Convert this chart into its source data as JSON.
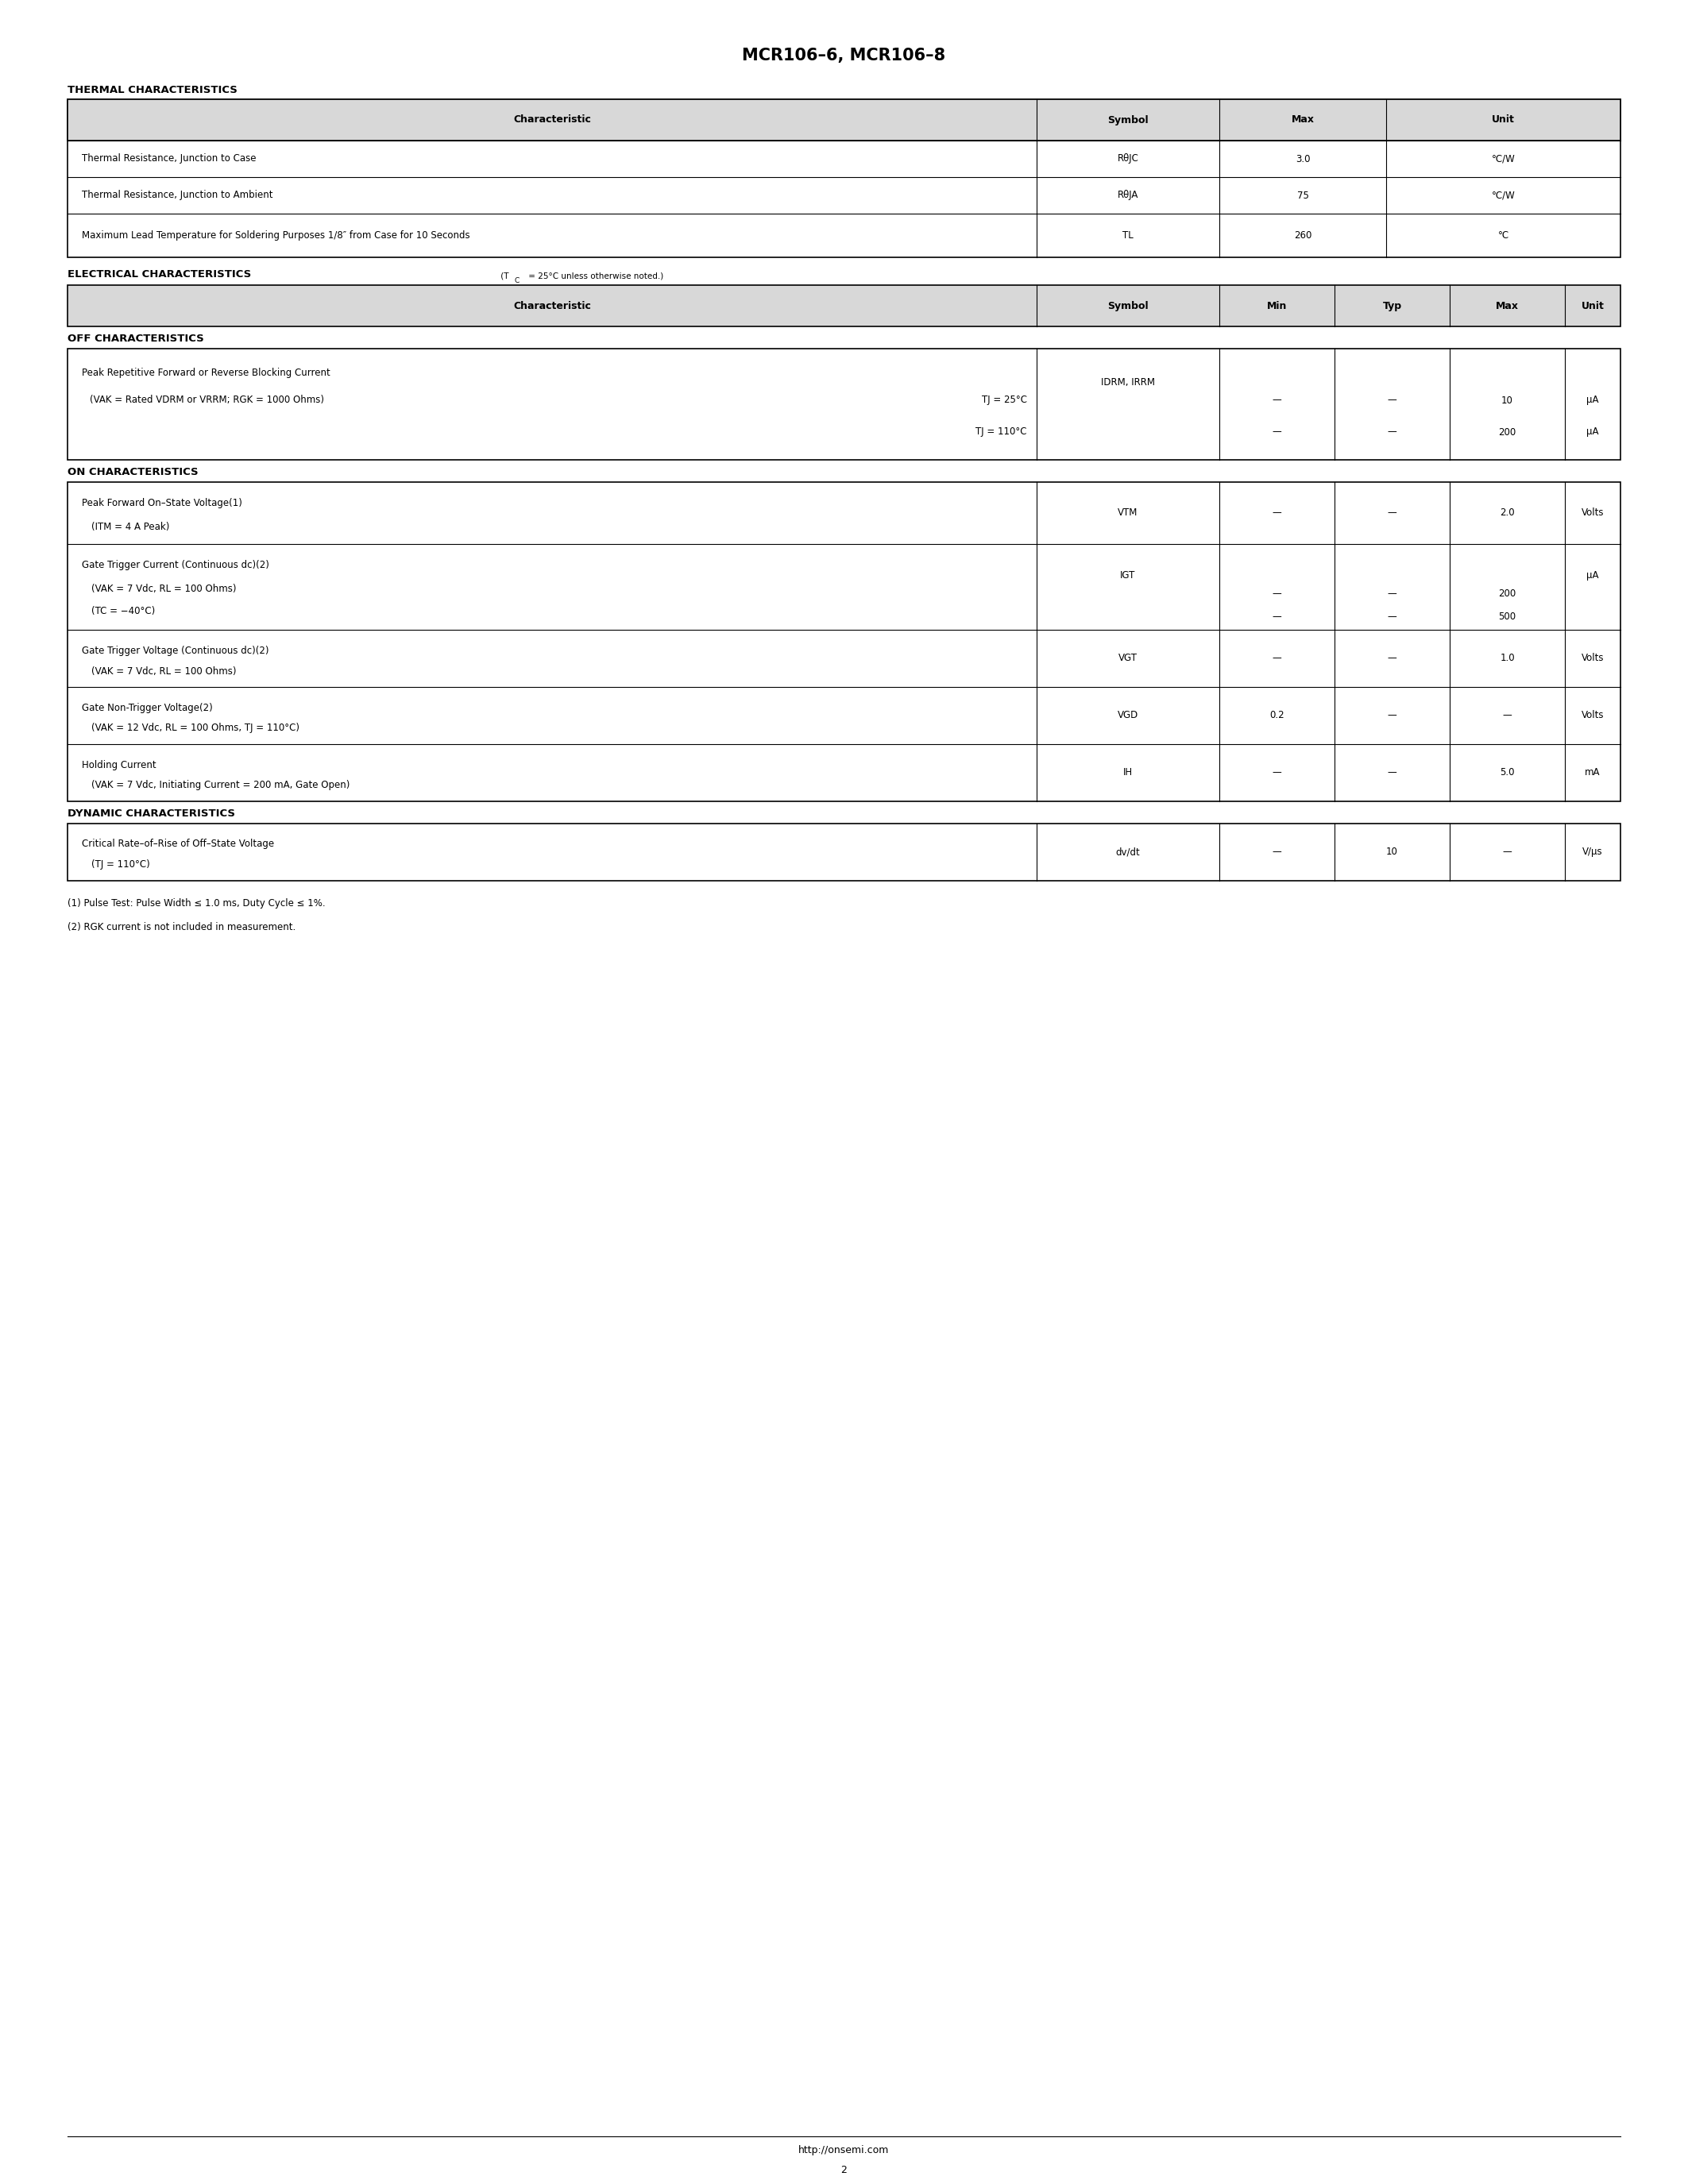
{
  "title": "MCR106–6, MCR106–8",
  "page_number": "2",
  "footer_url": "http://onsemi.com",
  "bg": "#ffffff",
  "black": "#000000",
  "gray": "#d8d8d8"
}
